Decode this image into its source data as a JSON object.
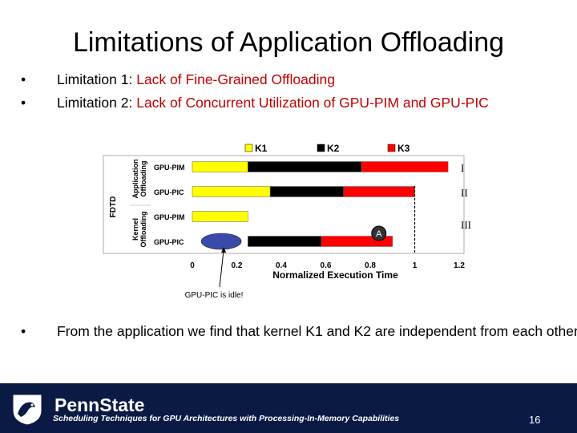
{
  "slide": {
    "title": "Limitations of Application Offloading",
    "bullets": [
      {
        "marker": "•",
        "prefix": "Limitation 1: ",
        "highlight": "Lack of Fine-Grained Offloading"
      },
      {
        "marker": "•",
        "prefix": "Limitation 2: ",
        "highlight": "Lack of Concurrent Utilization of GPU-PIM and GPU-PIC"
      }
    ],
    "bottom_bullet": {
      "marker": "•",
      "text": "From the application we find that kernel K1 and K2 are independent from each other."
    },
    "footer": {
      "brand": "PennState",
      "caption": "Scheduling Techniques for GPU Architectures with Processing-In-Memory Capabilities",
      "page_number": "16"
    }
  },
  "chart_data": {
    "type": "bar",
    "orientation": "horizontal",
    "stacked": true,
    "xlabel": "Normalized Execution Time",
    "xlim": [
      0,
      1.2
    ],
    "xticks": [
      "0",
      "0.2",
      "0.4",
      "0.6",
      "0.8",
      "1",
      "1.2"
    ],
    "ylabel_outer": "FDTD",
    "groups": [
      {
        "label": "Application Offloading",
        "roman": "I"
      },
      {
        "label": "Application Offloading",
        "roman": "II"
      },
      {
        "label": "Kernel Offloading",
        "roman": "III"
      }
    ],
    "group_labels": [
      "Application Offloading",
      "Kernel Offloading"
    ],
    "categories": [
      "GPU-PIM",
      "GPU-PIC",
      "GPU-PIM",
      "GPU-PIC"
    ],
    "roman_labels": [
      "I",
      "II",
      "III"
    ],
    "legend": {
      "placement": "top",
      "entries": [
        "K1",
        "K2",
        "K3"
      ]
    },
    "series": [
      {
        "name": "K1",
        "color": "#ffff00",
        "segments": [
          [
            0,
            0.25
          ],
          [
            0,
            0.35
          ],
          [
            0,
            0.25
          ],
          null
        ]
      },
      {
        "name": "K2",
        "color": "#000000",
        "segments": [
          [
            0.25,
            0.76
          ],
          [
            0.35,
            0.68
          ],
          null,
          [
            0.25,
            0.58
          ]
        ]
      },
      {
        "name": "K3",
        "color": "#ff0000",
        "segments": [
          [
            0.76,
            1.15
          ],
          [
            0.68,
            1.0
          ],
          null,
          [
            0.58,
            0.9
          ]
        ]
      }
    ],
    "reference_line": 1.0,
    "annotations": [
      {
        "text": "A",
        "near_value": 0.9
      },
      {
        "text": "GPU-PIC is idle!",
        "points_to_value": 0.13
      }
    ],
    "colors": {
      "k1": "#ffff00",
      "k2": "#000000",
      "k3": "#ff0000",
      "idle_marker": "#3a4aa8"
    }
  }
}
